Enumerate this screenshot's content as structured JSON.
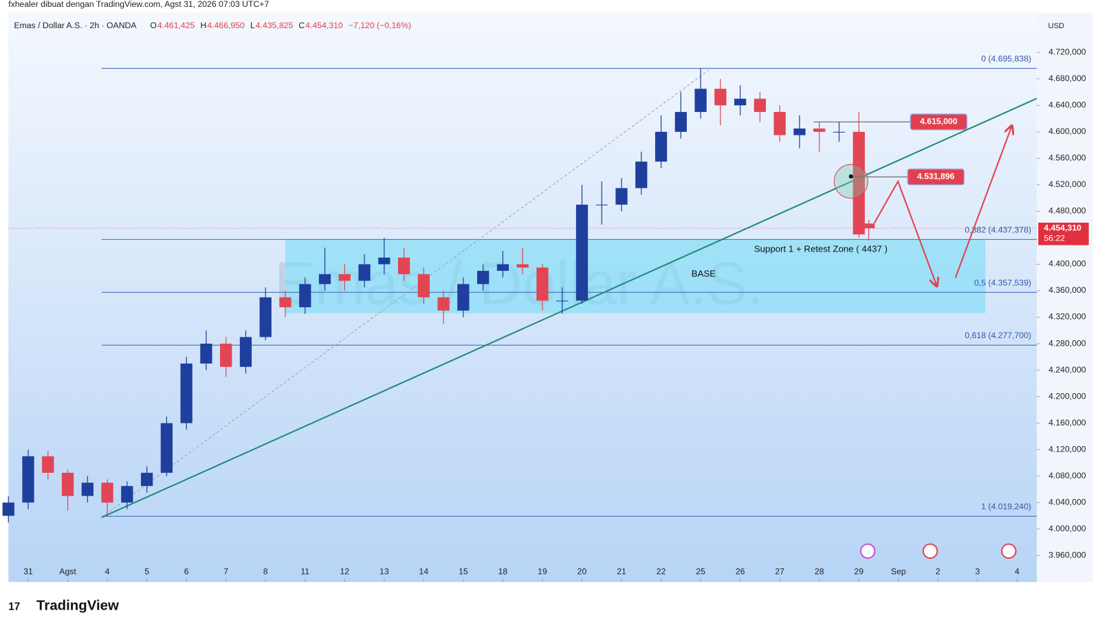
{
  "header": {
    "caption": "fxhealer dibuat dengan TradingView.com, Agst 31, 2026 07:03 UTC+7",
    "symbol": "Emas / Dollar A.S. · 2h · OANDA",
    "ohlc": [
      {
        "key": "O",
        "text": "4.461,425"
      },
      {
        "key": "H",
        "text": "4.466,950"
      },
      {
        "key": "L",
        "text": "4.435,825"
      },
      {
        "key": "C",
        "text": "4.454,310"
      }
    ],
    "change": "−7,120 (−0,16%)",
    "currency": "USD"
  },
  "chart_data": {
    "type": "candlestick",
    "watermark": "Emas / Dollar A.S.",
    "up_color": "#1f3f9e",
    "down_color": "#e24553",
    "xlim": [
      -0.5,
      25.5
    ],
    "xticks": [
      {
        "value": 0,
        "label": "31"
      },
      {
        "value": 1,
        "label": "Agst"
      },
      {
        "value": 2,
        "label": "4"
      },
      {
        "value": 3,
        "label": "5"
      },
      {
        "value": 4,
        "label": "6"
      },
      {
        "value": 5,
        "label": "7"
      },
      {
        "value": 6,
        "label": "8"
      },
      {
        "value": 7,
        "label": "11"
      },
      {
        "value": 8,
        "label": "12"
      },
      {
        "value": 9,
        "label": "13"
      },
      {
        "value": 10,
        "label": "14"
      },
      {
        "value": 11,
        "label": "15"
      },
      {
        "value": 12,
        "label": "18"
      },
      {
        "value": 13,
        "label": "19"
      },
      {
        "value": 14,
        "label": "20"
      },
      {
        "value": 15,
        "label": "21"
      },
      {
        "value": 16,
        "label": "22"
      },
      {
        "value": 17,
        "label": "25"
      },
      {
        "value": 18,
        "label": "26"
      },
      {
        "value": 19,
        "label": "27"
      },
      {
        "value": 20,
        "label": "28"
      },
      {
        "value": 21,
        "label": "29"
      },
      {
        "value": 22,
        "label": "Sep"
      },
      {
        "value": 23,
        "label": "2"
      },
      {
        "value": 24,
        "label": "3"
      },
      {
        "value": 25,
        "label": "4"
      }
    ],
    "ylim": [
      3920,
      4780
    ],
    "yticks": [
      {
        "value": 3960,
        "label": "3.960,000"
      },
      {
        "value": 4000,
        "label": "4.000,000"
      },
      {
        "value": 4040,
        "label": "4.040,000"
      },
      {
        "value": 4080,
        "label": "4.080,000"
      },
      {
        "value": 4120,
        "label": "4.120,000"
      },
      {
        "value": 4160,
        "label": "4.160,000"
      },
      {
        "value": 4200,
        "label": "4.200,000"
      },
      {
        "value": 4240,
        "label": "4.240,000"
      },
      {
        "value": 4280,
        "label": "4.280,000"
      },
      {
        "value": 4320,
        "label": "4.320,000"
      },
      {
        "value": 4360,
        "label": "4.360,000"
      },
      {
        "value": 4400,
        "label": "4.400,000"
      },
      {
        "value": 4480,
        "label": "4.480,000"
      },
      {
        "value": 4520,
        "label": "4.520,000"
      },
      {
        "value": 4560,
        "label": "4.560,000"
      },
      {
        "value": 4600,
        "label": "4.600,000"
      },
      {
        "value": 4640,
        "label": "4.640,000"
      },
      {
        "value": 4680,
        "label": "4.680,000"
      },
      {
        "value": 4720,
        "label": "4.720,000"
      }
    ],
    "x": [
      -0.5,
      0,
      0.5,
      1,
      1.5,
      2,
      2.5,
      3,
      3.5,
      4,
      4.5,
      5,
      5.5,
      6,
      6.5,
      7,
      7.5,
      8,
      8.5,
      9,
      9.5,
      10,
      10.5,
      11,
      11.5,
      12,
      12.5,
      13,
      13.5,
      14,
      14.5,
      15,
      15.5,
      16,
      16.5,
      17,
      17.5,
      18,
      18.5,
      19,
      19.5,
      20,
      20.5,
      21,
      21.25
    ],
    "open": [
      4020,
      4040,
      4110,
      4085,
      4050,
      4070,
      4040,
      4065,
      4085,
      4160,
      4250,
      4280,
      4245,
      4290,
      4350,
      4335,
      4370,
      4385,
      4375,
      4400,
      4410,
      4385,
      4350,
      4330,
      4370,
      4390,
      4400,
      4395,
      4345,
      4345,
      4490,
      4490,
      4515,
      4555,
      4600,
      4630,
      4665,
      4640,
      4650,
      4630,
      4595,
      4605,
      4600,
      4600,
      4461.425
    ],
    "high": [
      4050,
      4120,
      4118,
      4090,
      4080,
      4075,
      4072,
      4095,
      4170,
      4260,
      4300,
      4290,
      4300,
      4365,
      4360,
      4380,
      4425,
      4400,
      4415,
      4440,
      4425,
      4395,
      4360,
      4380,
      4400,
      4420,
      4425,
      4400,
      4365,
      4520,
      4525,
      4530,
      4570,
      4625,
      4660,
      4695.838,
      4680,
      4670,
      4660,
      4640,
      4625,
      4615,
      4615,
      4630,
      4466.95
    ],
    "low": [
      4010,
      4030,
      4075,
      4028,
      4040,
      4019.24,
      4030,
      4055,
      4080,
      4150,
      4240,
      4230,
      4235,
      4285,
      4320,
      4325,
      4360,
      4360,
      4365,
      4385,
      4375,
      4340,
      4310,
      4320,
      4360,
      4380,
      4385,
      4330,
      4325,
      4340,
      4460,
      4480,
      4505,
      4545,
      4590,
      4620,
      4610,
      4625,
      4615,
      4585,
      4575,
      4570,
      4585,
      4440,
      4435.825
    ],
    "close": [
      4040,
      4110,
      4085,
      4050,
      4070,
      4040,
      4065,
      4085,
      4160,
      4250,
      4280,
      4245,
      4290,
      4350,
      4335,
      4370,
      4385,
      4375,
      4400,
      4410,
      4385,
      4350,
      4330,
      4370,
      4390,
      4400,
      4395,
      4345,
      4345,
      4490,
      4490,
      4515,
      4555,
      4600,
      4630,
      4665,
      4640,
      4650,
      4630,
      4595,
      4605,
      4600,
      4600,
      4445,
      4454.31
    ],
    "fib_levels": [
      {
        "value": 4695.838,
        "label": "0 (4.695,838)"
      },
      {
        "value": 4437.378,
        "label": "0,382 (4.437,378)"
      },
      {
        "value": 4357.539,
        "label": "0,5 (4.357,539)"
      },
      {
        "value": 4277.7,
        "label": "0,618 (4.277,700)"
      },
      {
        "value": 4019.24,
        "label": "1 (4.019,240)"
      }
    ],
    "zone": {
      "label": "Support 1 + Retest Zone ( 4437 )",
      "top": 4437,
      "bottom": 4326,
      "x": [
        6.5,
        24.2
      ]
    },
    "base_label": "BASE",
    "price_labels": [
      {
        "value": 4615,
        "label": "4.615,000"
      },
      {
        "value": 4531.896,
        "label": "4.531,896"
      }
    ],
    "last_price": {
      "value": 4454.31,
      "label": "4.454,310",
      "countdown": "56:22"
    }
  },
  "footer": {
    "brand": "TradingView"
  }
}
